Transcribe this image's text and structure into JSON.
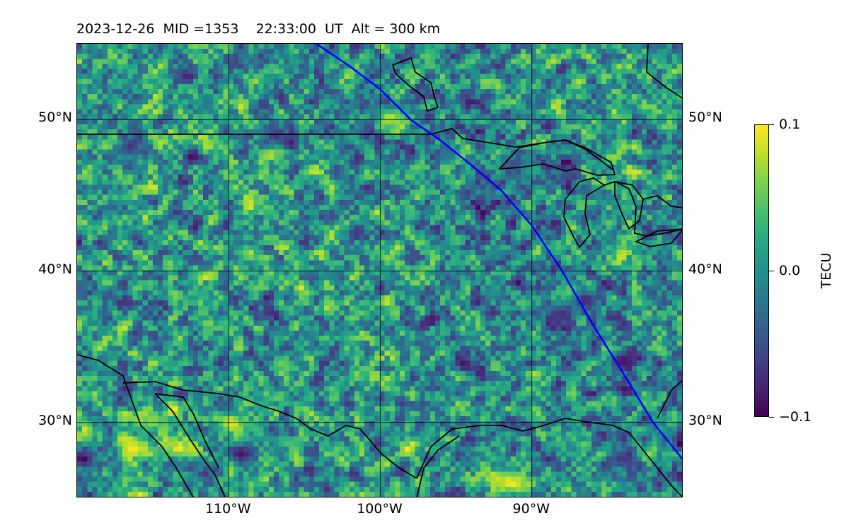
{
  "title": "2023-12-26  MID =1353    22:33:00  UT  Alt = 300 km",
  "map": {
    "lon_range": [
      -120,
      -80
    ],
    "lat_range": [
      25,
      55
    ],
    "lat_ticks": [
      {
        "value": 30,
        "label": "30°N"
      },
      {
        "value": 40,
        "label": "40°N"
      },
      {
        "value": 50,
        "label": "50°N"
      }
    ],
    "lon_ticks": [
      {
        "value": -110,
        "label": "110°W"
      },
      {
        "value": -100,
        "label": "100°W"
      },
      {
        "value": -90,
        "label": "90°W"
      }
    ],
    "gridlines": true,
    "track_color": "#0000ff",
    "coastline_color": "#000000",
    "track": [
      [
        -104.2,
        55.0
      ],
      [
        -102.0,
        53.5
      ],
      [
        -100.0,
        52.0
      ],
      [
        -98.0,
        50.0
      ],
      [
        -96.0,
        48.6
      ],
      [
        -94.0,
        47.0
      ],
      [
        -92.0,
        45.3
      ],
      [
        -90.0,
        43.0
      ],
      [
        -88.0,
        40.0
      ],
      [
        -86.0,
        36.5
      ],
      [
        -84.0,
        33.3
      ],
      [
        -82.0,
        30.0
      ],
      [
        -80.0,
        27.5
      ]
    ]
  },
  "colorbar": {
    "label": "TECU",
    "colormap": "viridis",
    "min": -0.1,
    "max": 0.1,
    "ticks": [
      {
        "value": 0.1,
        "label": "0.1"
      },
      {
        "value": 0.0,
        "label": "0.0"
      },
      {
        "value": -0.1,
        "label": "−0.1"
      }
    ]
  },
  "chart_data": {
    "type": "heatmap",
    "title": "2023-12-26  MID =1353    22:33:00  UT  Alt = 300 km",
    "value_label": "TECU",
    "vmin": -0.1,
    "vmax": 0.1,
    "xlim": [
      -120,
      -80
    ],
    "ylim": [
      25,
      55
    ],
    "hotspots": [
      {
        "lon": -116.3,
        "lat": 28.2,
        "value": 0.1
      },
      {
        "lon": -113.3,
        "lat": 28.2,
        "value": 0.1
      },
      {
        "lon": -109.8,
        "lat": 29.9,
        "value": 0.09
      },
      {
        "lon": -91.3,
        "lat": 25.9,
        "value": 0.1
      },
      {
        "lon": -99.3,
        "lat": 50.1,
        "value": 0.08
      },
      {
        "lon": -115.0,
        "lat": 30.0,
        "value": 0.07
      },
      {
        "lon": -87.4,
        "lat": 38.5,
        "value": 0.07
      }
    ],
    "coldspots": [
      {
        "lon": -119.6,
        "lat": 27.5,
        "value": -0.1
      },
      {
        "lon": -109.1,
        "lat": 27.8,
        "value": -0.09
      },
      {
        "lon": -83.9,
        "lat": 34.0,
        "value": -0.09
      },
      {
        "lon": -86.4,
        "lat": 38.0,
        "value": -0.08
      },
      {
        "lon": -88.0,
        "lat": 37.0,
        "value": -0.07
      },
      {
        "lon": -106.9,
        "lat": 48.9,
        "value": -0.07
      },
      {
        "lon": -116.5,
        "lat": 48.1,
        "value": -0.07
      },
      {
        "lon": -91.1,
        "lat": 47.0,
        "value": -0.06
      },
      {
        "lon": -84.0,
        "lat": 27.5,
        "value": -0.07
      }
    ]
  }
}
